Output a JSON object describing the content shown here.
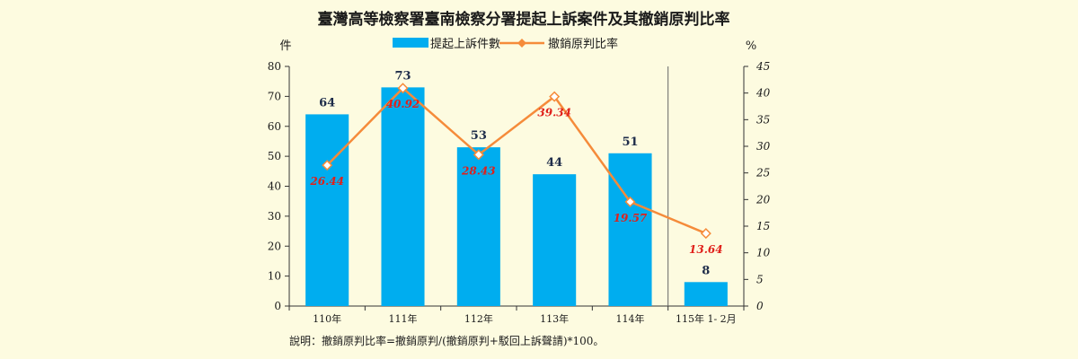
{
  "chart_data": {
    "type": "bar",
    "title": "臺灣高等檢察署臺南檢察分署提起上訴案件及其撤銷原判比率",
    "categories": [
      "110年",
      "111年",
      "112年",
      "113年",
      "114年",
      "115年 1- 2月"
    ],
    "series": [
      {
        "name": "提起上訴件數",
        "type": "bar",
        "axis": "left",
        "values": [
          64,
          73,
          53,
          44,
          51,
          8
        ],
        "labels": [
          "64",
          "73",
          "53",
          "44",
          "51",
          "8"
        ],
        "color": "#00adef"
      },
      {
        "name": "撤銷原判比率",
        "type": "line",
        "axis": "right",
        "values": [
          26.44,
          40.92,
          28.43,
          39.34,
          19.57,
          13.64
        ],
        "labels": [
          "26.44",
          "40.92",
          "28.43",
          "39.34",
          "19.57",
          "13.64"
        ],
        "color": "#f58b3a"
      }
    ],
    "left_axis": {
      "unit": "件",
      "min": 0,
      "max": 80,
      "step": 10,
      "ticks": [
        "0",
        "10",
        "20",
        "30",
        "40",
        "50",
        "60",
        "70",
        "80"
      ]
    },
    "right_axis": {
      "unit": "%",
      "min": 0,
      "max": 45,
      "step": 5,
      "ticks": [
        "0",
        "5",
        "10",
        "15",
        "20",
        "25",
        "30",
        "35",
        "40",
        "45"
      ]
    },
    "legend_position": "top-center",
    "separator_after_category": 4,
    "grid": false,
    "label_color_bar": "#1f2d4a",
    "label_color_line": "#e0201a"
  },
  "note": "說明：撤銷原判比率=撤銷原判/(撤銷原判+駁回上訴聲請)*100。"
}
